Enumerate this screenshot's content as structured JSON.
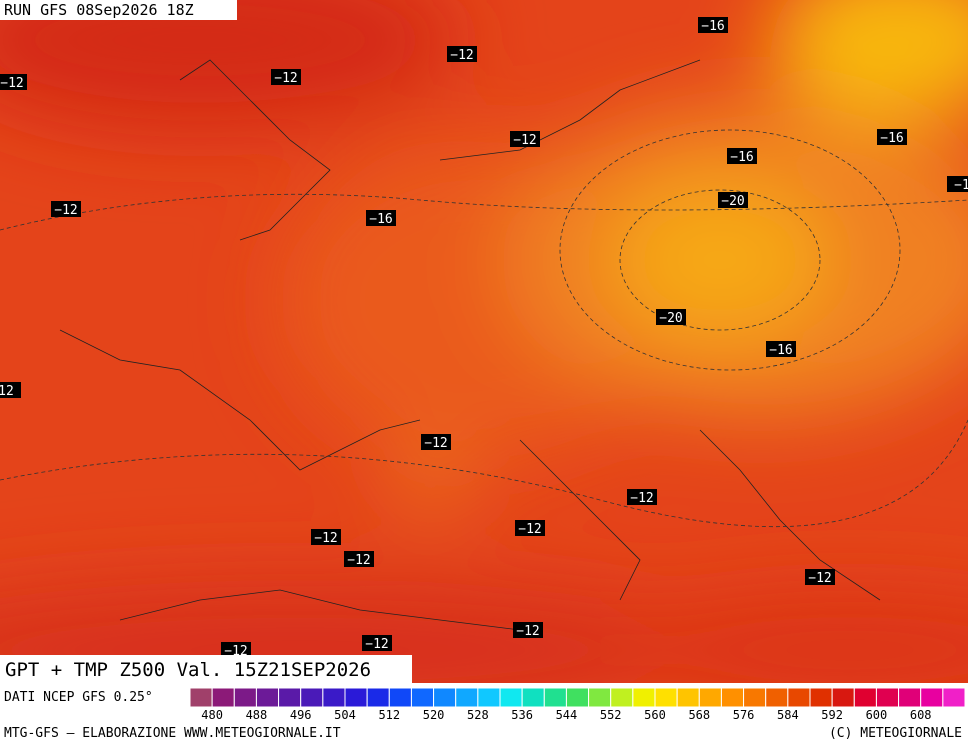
{
  "header": "RUN GFS 08Sep2026 18Z",
  "title": "GPT + TMP Z500 Val. 15Z21SEP2026",
  "source": "DATI NCEP GFS 0.25°",
  "footer_left": "MTG-GFS — ELABORAZIONE WWW.METEOGIORNALE.IT",
  "footer_right": "(C) METEOGIORNALE",
  "contour_labels": [
    "−12",
    "−12",
    "−12",
    "−16",
    "−12",
    "−16",
    "−16",
    "−12",
    "−16",
    "−20",
    "−1",
    "−20",
    "−16",
    "12",
    "−12",
    "−12",
    "−12",
    "−12",
    "−12",
    "−12",
    "−12",
    "−12",
    "−12"
  ],
  "scale": {
    "ticks": [
      480,
      488,
      496,
      504,
      512,
      520,
      528,
      536,
      544,
      552,
      560,
      568,
      576,
      584,
      592,
      600,
      608
    ],
    "colors": [
      "#a0406a",
      "#8c1a78",
      "#7c1a88",
      "#6c1a98",
      "#5a1aa8",
      "#4a1ab8",
      "#3a1ac8",
      "#2a1ad8",
      "#1a2ae8",
      "#1048f8",
      "#1068ff",
      "#1088ff",
      "#10a8ff",
      "#10c8ff",
      "#10e8f0",
      "#10e0c0",
      "#20e090",
      "#40e060",
      "#80e840",
      "#c0f020",
      "#f0f000",
      "#ffe000",
      "#ffc400",
      "#ffa800",
      "#ff9000",
      "#f87800",
      "#f06000",
      "#e84800",
      "#e03000",
      "#d81810",
      "#e00030",
      "#e00050",
      "#e00078",
      "#e800a0",
      "#f020c8"
    ]
  }
}
